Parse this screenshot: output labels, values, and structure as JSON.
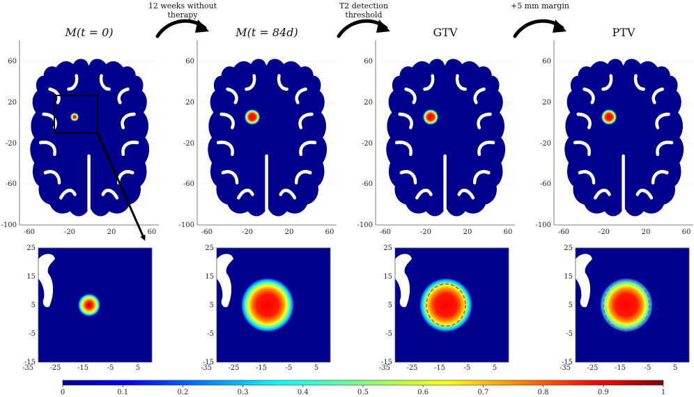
{
  "panels": [
    {
      "title": "M(t = 0)",
      "tumor_scale": 0.55,
      "contour": null
    },
    {
      "title": "M(t = 84d)",
      "tumor_scale": 1.0,
      "contour": null
    },
    {
      "title": "GTV",
      "tumor_scale": 1.0,
      "contour": "gtv"
    },
    {
      "title": "PTV",
      "tumor_scale": 1.0,
      "contour": "ptv"
    }
  ],
  "arrows": [
    {
      "line1": "12 weeks without",
      "line2": "therapy"
    },
    {
      "line1": "T2 detection",
      "line2": "threshold"
    },
    {
      "line1": "+5 mm margin",
      "line2": ""
    }
  ],
  "top_axes": {
    "x_ticks": [
      "-60",
      "-20",
      "20",
      "60"
    ],
    "y_ticks": [
      "60",
      "20",
      "-20",
      "-60",
      "-100"
    ]
  },
  "bottom_axes": {
    "x_ticks": [
      "-35",
      "-25",
      "-15",
      "-5",
      "5"
    ],
    "y_ticks": [
      "25",
      "15",
      "5",
      "-5",
      "-15"
    ]
  },
  "colorbar": {
    "ticks": [
      "0",
      "0.1",
      "0.2",
      "0.3",
      "0.4",
      "0.5",
      "0.6",
      "0.7",
      "0.8",
      "0.9",
      "1"
    ],
    "colormap": "jet"
  },
  "colors": {
    "background": "#00008f",
    "tumor_peak": "#ff0000",
    "contour": "#ff3b3b"
  }
}
